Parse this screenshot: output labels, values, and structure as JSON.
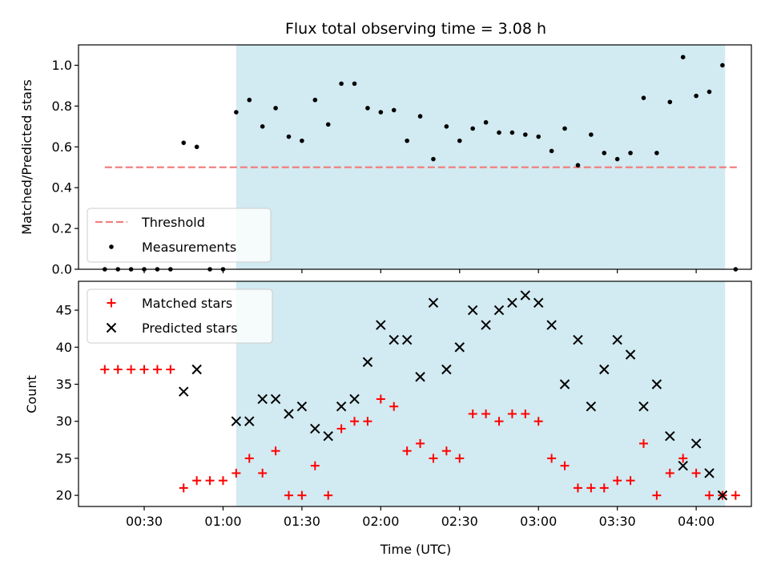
{
  "chart_data": [
    {
      "type": "scatter",
      "title": "Flux total observing time = 3.08 h",
      "xlabel": "",
      "ylabel": "Matched/Predicted stars",
      "ylim": [
        0,
        1.1
      ],
      "xlim": [
        "00:05",
        "04:21"
      ],
      "yticks": [
        "0.0",
        "0.2",
        "0.4",
        "0.6",
        "0.8",
        "1.0"
      ],
      "grid": false,
      "legend_position": "lower-left",
      "highlight_span": {
        "start": "01:05",
        "end": "04:11",
        "color": "#add8e6"
      },
      "threshold": {
        "name": "Threshold",
        "y": 0.5,
        "x_start": "00:15",
        "x_end": "04:16",
        "color": "#f08080",
        "style": "dashed"
      },
      "series": [
        {
          "name": "Measurements",
          "color": "#000000",
          "marker": "dot",
          "points": [
            [
              "00:15",
              0.0
            ],
            [
              "00:20",
              0.0
            ],
            [
              "00:25",
              0.0
            ],
            [
              "00:30",
              0.0
            ],
            [
              "00:35",
              0.0
            ],
            [
              "00:40",
              0.0
            ],
            [
              "00:45",
              0.62
            ],
            [
              "00:50",
              0.6
            ],
            [
              "00:55",
              0.0
            ],
            [
              "01:00",
              0.0
            ],
            [
              "01:05",
              0.77
            ],
            [
              "01:10",
              0.83
            ],
            [
              "01:15",
              0.7
            ],
            [
              "01:20",
              0.79
            ],
            [
              "01:25",
              0.65
            ],
            [
              "01:30",
              0.63
            ],
            [
              "01:35",
              0.83
            ],
            [
              "01:40",
              0.71
            ],
            [
              "01:45",
              0.91
            ],
            [
              "01:50",
              0.91
            ],
            [
              "01:55",
              0.79
            ],
            [
              "02:00",
              0.77
            ],
            [
              "02:05",
              0.78
            ],
            [
              "02:10",
              0.63
            ],
            [
              "02:15",
              0.75
            ],
            [
              "02:20",
              0.54
            ],
            [
              "02:25",
              0.7
            ],
            [
              "02:30",
              0.63
            ],
            [
              "02:35",
              0.69
            ],
            [
              "02:40",
              0.72
            ],
            [
              "02:45",
              0.67
            ],
            [
              "02:50",
              0.67
            ],
            [
              "02:55",
              0.66
            ],
            [
              "03:00",
              0.65
            ],
            [
              "03:05",
              0.58
            ],
            [
              "03:10",
              0.69
            ],
            [
              "03:15",
              0.51
            ],
            [
              "03:20",
              0.66
            ],
            [
              "03:25",
              0.57
            ],
            [
              "03:30",
              0.54
            ],
            [
              "03:35",
              0.57
            ],
            [
              "03:40",
              0.84
            ],
            [
              "03:45",
              0.57
            ],
            [
              "03:50",
              0.82
            ],
            [
              "03:55",
              1.04
            ],
            [
              "04:00",
              0.85
            ],
            [
              "04:05",
              0.87
            ],
            [
              "04:10",
              1.0
            ],
            [
              "04:15",
              0.0
            ]
          ]
        }
      ],
      "legend": [
        "Threshold",
        "Measurements"
      ]
    },
    {
      "type": "scatter",
      "title": "",
      "xlabel": "Time (UTC)",
      "ylabel": "Count",
      "ylim": [
        18.5,
        48.9
      ],
      "xlim": [
        "00:05",
        "04:21"
      ],
      "xticks": [
        "00:30",
        "01:00",
        "01:30",
        "02:00",
        "02:30",
        "03:00",
        "03:30",
        "04:00"
      ],
      "yticks": [
        "20",
        "25",
        "30",
        "35",
        "40",
        "45"
      ],
      "grid": false,
      "legend_position": "top-left",
      "highlight_span": {
        "start": "01:05",
        "end": "04:11",
        "color": "#add8e6"
      },
      "series": [
        {
          "name": "Matched stars",
          "color": "#ff0000",
          "marker": "plus",
          "points": [
            [
              "00:15",
              37
            ],
            [
              "00:20",
              37
            ],
            [
              "00:25",
              37
            ],
            [
              "00:30",
              37
            ],
            [
              "00:35",
              37
            ],
            [
              "00:40",
              37
            ],
            [
              "00:45",
              21
            ],
            [
              "00:50",
              22
            ],
            [
              "00:55",
              22
            ],
            [
              "01:00",
              22
            ],
            [
              "01:05",
              23
            ],
            [
              "01:10",
              25
            ],
            [
              "01:15",
              23
            ],
            [
              "01:20",
              26
            ],
            [
              "01:25",
              20
            ],
            [
              "01:30",
              20
            ],
            [
              "01:35",
              24
            ],
            [
              "01:40",
              20
            ],
            [
              "01:45",
              29
            ],
            [
              "01:50",
              30
            ],
            [
              "01:55",
              30
            ],
            [
              "02:00",
              33
            ],
            [
              "02:05",
              32
            ],
            [
              "02:10",
              26
            ],
            [
              "02:15",
              27
            ],
            [
              "02:20",
              25
            ],
            [
              "02:25",
              26
            ],
            [
              "02:30",
              25
            ],
            [
              "02:35",
              31
            ],
            [
              "02:40",
              31
            ],
            [
              "02:45",
              30
            ],
            [
              "02:50",
              31
            ],
            [
              "02:55",
              31
            ],
            [
              "03:00",
              30
            ],
            [
              "03:05",
              25
            ],
            [
              "03:10",
              24
            ],
            [
              "03:15",
              21
            ],
            [
              "03:20",
              21
            ],
            [
              "03:25",
              21
            ],
            [
              "03:30",
              22
            ],
            [
              "03:35",
              22
            ],
            [
              "03:40",
              27
            ],
            [
              "03:45",
              20
            ],
            [
              "03:50",
              23
            ],
            [
              "03:55",
              25
            ],
            [
              "04:00",
              23
            ],
            [
              "04:05",
              20
            ],
            [
              "04:10",
              20
            ],
            [
              "04:15",
              20
            ]
          ]
        },
        {
          "name": "Predicted stars",
          "color": "#000000",
          "marker": "x",
          "points": [
            [
              "00:45",
              34
            ],
            [
              "00:50",
              37
            ],
            [
              "01:05",
              30
            ],
            [
              "01:10",
              30
            ],
            [
              "01:15",
              33
            ],
            [
              "01:20",
              33
            ],
            [
              "01:25",
              31
            ],
            [
              "01:30",
              32
            ],
            [
              "01:35",
              29
            ],
            [
              "01:40",
              28
            ],
            [
              "01:45",
              32
            ],
            [
              "01:50",
              33
            ],
            [
              "01:55",
              38
            ],
            [
              "02:00",
              43
            ],
            [
              "02:05",
              41
            ],
            [
              "02:10",
              41
            ],
            [
              "02:15",
              36
            ],
            [
              "02:20",
              46
            ],
            [
              "02:25",
              37
            ],
            [
              "02:30",
              40
            ],
            [
              "02:35",
              45
            ],
            [
              "02:40",
              43
            ],
            [
              "02:45",
              45
            ],
            [
              "02:50",
              46
            ],
            [
              "02:55",
              47
            ],
            [
              "03:00",
              46
            ],
            [
              "03:05",
              43
            ],
            [
              "03:10",
              35
            ],
            [
              "03:15",
              41
            ],
            [
              "03:20",
              32
            ],
            [
              "03:25",
              37
            ],
            [
              "03:30",
              41
            ],
            [
              "03:35",
              39
            ],
            [
              "03:40",
              32
            ],
            [
              "03:45",
              35
            ],
            [
              "03:50",
              28
            ],
            [
              "03:55",
              24
            ],
            [
              "04:00",
              27
            ],
            [
              "04:05",
              23
            ],
            [
              "04:10",
              20
            ]
          ]
        }
      ],
      "legend": [
        "Matched stars",
        "Predicted stars"
      ]
    }
  ]
}
